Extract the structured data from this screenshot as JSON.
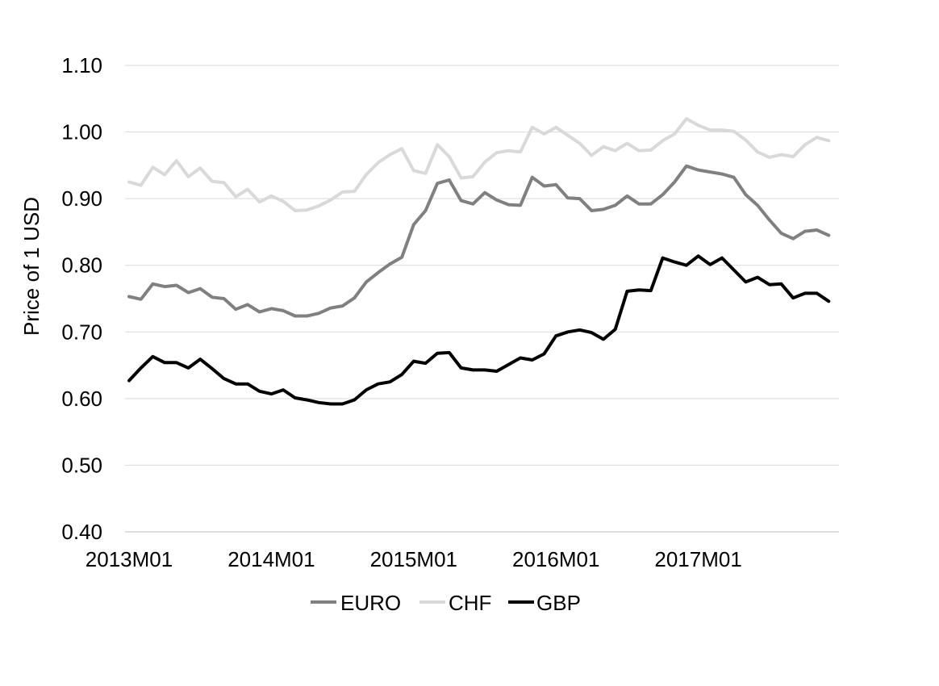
{
  "chart_data": {
    "type": "line",
    "ylabel": "Price of 1 USD",
    "ylim": [
      0.4,
      1.1
    ],
    "yticks": [
      "0.40",
      "0.50",
      "0.60",
      "0.70",
      "0.80",
      "0.90",
      "1.00",
      "1.10"
    ],
    "xtick_labels": [
      "2013M01",
      "2014M01",
      "2015M01",
      "2016M01",
      "2017M01"
    ],
    "grid": "horizontal",
    "legend_position": "bottom",
    "x": [
      "2013M01",
      "2013M02",
      "2013M03",
      "2013M04",
      "2013M05",
      "2013M06",
      "2013M07",
      "2013M08",
      "2013M09",
      "2013M10",
      "2013M11",
      "2013M12",
      "2014M01",
      "2014M02",
      "2014M03",
      "2014M04",
      "2014M05",
      "2014M06",
      "2014M07",
      "2014M08",
      "2014M09",
      "2014M10",
      "2014M11",
      "2014M12",
      "2015M01",
      "2015M02",
      "2015M03",
      "2015M04",
      "2015M05",
      "2015M06",
      "2015M07",
      "2015M08",
      "2015M09",
      "2015M10",
      "2015M11",
      "2015M12",
      "2016M01",
      "2016M02",
      "2016M03",
      "2016M04",
      "2016M05",
      "2016M06",
      "2016M07",
      "2016M08",
      "2016M09",
      "2016M10",
      "2016M11",
      "2016M12",
      "2017M01",
      "2017M02",
      "2017M03",
      "2017M04",
      "2017M05",
      "2017M06",
      "2017M07",
      "2017M08",
      "2017M09",
      "2017M10",
      "2017M11",
      "2017M12"
    ],
    "series": [
      {
        "name": "EURO",
        "color": "#808080",
        "values": [
          0.753,
          0.749,
          0.772,
          0.768,
          0.77,
          0.759,
          0.765,
          0.752,
          0.75,
          0.734,
          0.741,
          0.73,
          0.735,
          0.732,
          0.724,
          0.724,
          0.728,
          0.736,
          0.739,
          0.751,
          0.775,
          0.789,
          0.802,
          0.812,
          0.861,
          0.882,
          0.923,
          0.928,
          0.897,
          0.892,
          0.909,
          0.898,
          0.891,
          0.89,
          0.932,
          0.919,
          0.921,
          0.901,
          0.9,
          0.882,
          0.884,
          0.89,
          0.904,
          0.892,
          0.892,
          0.906,
          0.925,
          0.949,
          0.943,
          0.94,
          0.937,
          0.932,
          0.906,
          0.89,
          0.868,
          0.848,
          0.84,
          0.851,
          0.853,
          0.845
        ]
      },
      {
        "name": "CHF",
        "color": "#d9d9d9",
        "values": [
          0.925,
          0.92,
          0.947,
          0.936,
          0.957,
          0.933,
          0.946,
          0.926,
          0.924,
          0.903,
          0.914,
          0.895,
          0.904,
          0.896,
          0.882,
          0.883,
          0.889,
          0.898,
          0.91,
          0.911,
          0.936,
          0.954,
          0.966,
          0.975,
          0.942,
          0.938,
          0.981,
          0.963,
          0.931,
          0.933,
          0.955,
          0.969,
          0.972,
          0.97,
          1.007,
          0.997,
          1.007,
          0.995,
          0.983,
          0.965,
          0.978,
          0.972,
          0.983,
          0.972,
          0.973,
          0.987,
          0.997,
          1.02,
          1.01,
          1.003,
          1.003,
          1.001,
          0.988,
          0.97,
          0.962,
          0.966,
          0.963,
          0.981,
          0.992,
          0.987
        ]
      },
      {
        "name": "GBP",
        "color": "#000000",
        "values": [
          0.627,
          0.646,
          0.663,
          0.654,
          0.654,
          0.646,
          0.659,
          0.645,
          0.63,
          0.622,
          0.622,
          0.611,
          0.607,
          0.613,
          0.601,
          0.598,
          0.594,
          0.592,
          0.592,
          0.598,
          0.613,
          0.622,
          0.625,
          0.636,
          0.656,
          0.653,
          0.668,
          0.669,
          0.646,
          0.643,
          0.643,
          0.641,
          0.651,
          0.661,
          0.658,
          0.667,
          0.694,
          0.7,
          0.703,
          0.699,
          0.689,
          0.704,
          0.761,
          0.763,
          0.762,
          0.811,
          0.805,
          0.8,
          0.814,
          0.801,
          0.811,
          0.793,
          0.775,
          0.782,
          0.771,
          0.772,
          0.751,
          0.758,
          0.758,
          0.746
        ]
      }
    ]
  }
}
